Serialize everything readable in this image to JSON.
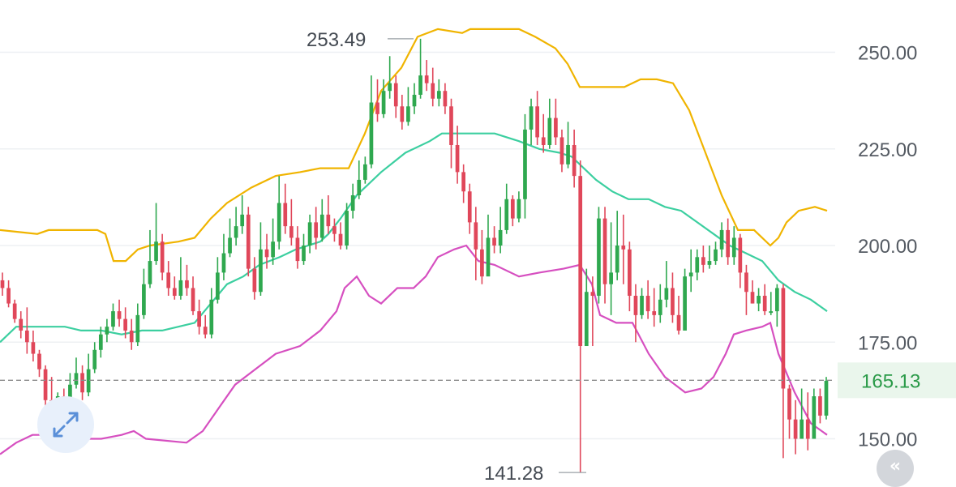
{
  "chart_data": {
    "type": "candlestick",
    "y_axis": {
      "ticks": [
        "250.00",
        "225.00",
        "200.00",
        "175.00",
        "150.00"
      ],
      "tick_values": [
        250,
        225,
        200,
        175,
        150
      ],
      "range": [
        138,
        262
      ],
      "grid": true,
      "position": "right"
    },
    "current_price": {
      "label": "165.13",
      "value": 165.13
    },
    "high_marker": {
      "label": "253.49",
      "value": 253.49
    },
    "low_marker": {
      "label": "141.28",
      "value": 141.28
    },
    "colors": {
      "up": "#2fa84f",
      "down": "#e0475a",
      "upper_band": "#f0b400",
      "middle_band": "#3ccfa0",
      "lower_band": "#d64fc0",
      "grid": "#eef0f3",
      "current_line": "#8c8c8c"
    },
    "candles": [
      [
        191,
        189,
        193,
        187
      ],
      [
        189,
        185,
        191,
        184
      ],
      [
        185,
        181,
        186,
        180
      ],
      [
        181,
        178,
        183,
        176
      ],
      [
        178,
        175,
        184,
        172
      ],
      [
        175,
        172,
        178,
        170
      ],
      [
        172,
        168,
        173,
        166
      ],
      [
        168,
        160,
        169,
        157
      ],
      [
        160,
        155,
        166,
        154
      ],
      [
        155,
        161,
        162,
        153
      ],
      [
        161,
        157,
        163,
        155
      ],
      [
        157,
        164,
        167,
        156
      ],
      [
        164,
        167,
        171,
        163
      ],
      [
        167,
        162,
        169,
        160
      ],
      [
        162,
        168,
        172,
        161
      ],
      [
        168,
        173,
        175,
        167
      ],
      [
        173,
        177,
        179,
        171
      ],
      [
        177,
        179,
        181,
        175
      ],
      [
        179,
        183,
        185,
        178
      ],
      [
        183,
        181,
        186,
        179
      ],
      [
        181,
        178,
        184,
        176
      ],
      [
        178,
        175,
        181,
        173
      ],
      [
        175,
        182,
        185,
        174
      ],
      [
        182,
        190,
        194,
        181
      ],
      [
        190,
        196,
        204,
        189
      ],
      [
        196,
        201,
        211,
        195
      ],
      [
        201,
        193,
        203,
        191
      ],
      [
        193,
        189,
        196,
        187
      ],
      [
        189,
        187,
        192,
        186
      ],
      [
        187,
        191,
        197,
        186
      ],
      [
        191,
        189,
        195,
        187
      ],
      [
        189,
        183,
        192,
        182
      ],
      [
        183,
        179,
        186,
        177
      ],
      [
        179,
        177,
        182,
        176
      ],
      [
        177,
        186,
        189,
        176
      ],
      [
        186,
        193,
        197,
        185
      ],
      [
        193,
        198,
        203,
        191
      ],
      [
        198,
        202,
        207,
        197
      ],
      [
        202,
        205,
        210,
        200
      ],
      [
        205,
        208,
        213,
        203
      ],
      [
        208,
        194,
        210,
        192
      ],
      [
        194,
        188,
        197,
        186
      ],
      [
        188,
        199,
        206,
        187
      ],
      [
        199,
        197,
        203,
        194
      ],
      [
        197,
        201,
        207,
        195
      ],
      [
        201,
        211,
        218,
        199
      ],
      [
        211,
        205,
        216,
        203
      ],
      [
        205,
        202,
        212,
        200
      ],
      [
        202,
        196,
        205,
        194
      ],
      [
        196,
        200,
        203,
        195
      ],
      [
        200,
        206,
        208,
        198
      ],
      [
        206,
        202,
        210,
        199
      ],
      [
        202,
        208,
        212,
        201
      ],
      [
        208,
        205,
        213,
        203
      ],
      [
        205,
        203,
        207,
        201
      ],
      [
        203,
        200,
        206,
        199
      ],
      [
        200,
        209,
        211,
        199
      ],
      [
        209,
        213,
        216,
        207
      ],
      [
        213,
        217,
        222,
        212
      ],
      [
        217,
        221,
        223,
        216
      ],
      [
        221,
        237,
        244,
        220
      ],
      [
        237,
        234,
        243,
        232
      ],
      [
        234,
        240,
        243,
        233
      ],
      [
        240,
        242,
        249,
        238
      ],
      [
        242,
        236,
        244,
        233
      ],
      [
        236,
        232,
        239,
        230
      ],
      [
        232,
        236,
        241,
        231
      ],
      [
        236,
        239,
        242,
        234
      ],
      [
        239,
        244,
        253.49,
        238
      ],
      [
        244,
        242,
        248,
        240
      ],
      [
        242,
        238,
        246,
        236
      ],
      [
        238,
        240,
        243,
        236
      ],
      [
        240,
        236,
        242,
        234
      ],
      [
        236,
        226,
        238,
        220
      ],
      [
        226,
        219,
        231,
        216
      ],
      [
        219,
        214,
        221,
        211
      ],
      [
        214,
        206,
        216,
        203
      ],
      [
        206,
        199,
        210,
        191
      ],
      [
        199,
        192,
        204,
        190
      ],
      [
        192,
        202,
        208,
        194
      ],
      [
        202,
        200,
        205,
        198
      ],
      [
        200,
        204,
        210,
        198
      ],
      [
        204,
        212,
        216,
        203
      ],
      [
        212,
        207,
        213,
        205
      ],
      [
        207,
        212,
        214,
        206
      ],
      [
        212,
        230,
        234,
        207
      ],
      [
        230,
        236,
        238,
        226
      ],
      [
        236,
        228,
        240,
        226
      ],
      [
        228,
        226,
        234,
        224
      ],
      [
        226,
        233,
        238,
        225
      ],
      [
        233,
        228,
        238,
        226
      ],
      [
        228,
        221,
        230,
        219
      ],
      [
        221,
        226,
        232,
        220
      ],
      [
        226,
        218,
        230,
        215
      ],
      [
        218,
        174,
        222,
        141.28
      ],
      [
        174,
        188,
        194,
        174
      ],
      [
        188,
        187,
        192,
        174
      ],
      [
        187,
        207,
        210,
        185
      ],
      [
        207,
        190,
        210,
        185
      ],
      [
        190,
        193,
        206,
        182
      ],
      [
        193,
        200,
        209,
        191
      ],
      [
        200,
        199,
        208,
        190
      ],
      [
        199,
        187,
        201,
        183
      ],
      [
        187,
        182,
        190,
        175
      ],
      [
        182,
        187,
        189,
        181
      ],
      [
        187,
        183,
        191,
        181
      ],
      [
        183,
        182,
        189,
        179
      ],
      [
        182,
        186,
        190,
        180
      ],
      [
        186,
        189,
        196,
        184
      ],
      [
        189,
        182,
        193,
        180
      ],
      [
        182,
        178,
        187,
        177
      ],
      [
        178,
        192,
        194,
        181
      ],
      [
        192,
        193,
        199,
        188
      ],
      [
        193,
        197,
        199,
        191
      ],
      [
        197,
        195,
        200,
        193
      ],
      [
        195,
        196,
        200,
        194
      ],
      [
        196,
        199,
        201,
        195
      ],
      [
        199,
        204,
        206,
        197
      ],
      [
        204,
        197,
        207,
        195
      ],
      [
        197,
        202,
        205,
        195
      ],
      [
        202,
        193,
        203,
        189
      ],
      [
        193,
        188,
        195,
        182
      ],
      [
        188,
        185,
        191,
        185
      ],
      [
        185,
        187,
        189,
        183
      ],
      [
        187,
        183,
        190,
        182
      ],
      [
        183,
        183,
        188,
        182
      ],
      [
        183,
        189,
        190,
        179
      ],
      [
        189,
        163,
        190,
        145
      ],
      [
        163,
        155,
        164,
        150
      ],
      [
        155,
        150,
        160,
        146
      ],
      [
        150,
        155,
        163,
        150
      ],
      [
        155,
        150,
        162,
        147
      ],
      [
        150,
        161,
        163,
        153
      ],
      [
        161,
        156,
        163,
        154
      ],
      [
        156,
        165,
        166,
        155
      ]
    ],
    "upper_band": [
      [
        0,
        204
      ],
      [
        46,
        203
      ],
      [
        60,
        204
      ],
      [
        120,
        204
      ],
      [
        130,
        203
      ],
      [
        140,
        196
      ],
      [
        155,
        196
      ],
      [
        170,
        199
      ],
      [
        185,
        200
      ],
      [
        220,
        201
      ],
      [
        240,
        202
      ],
      [
        260,
        207
      ],
      [
        280,
        211
      ],
      [
        310,
        215
      ],
      [
        340,
        218
      ],
      [
        370,
        219
      ],
      [
        395,
        220
      ],
      [
        430,
        220
      ],
      [
        450,
        229
      ],
      [
        470,
        240
      ],
      [
        495,
        246
      ],
      [
        515,
        254
      ],
      [
        540,
        256
      ],
      [
        570,
        255
      ],
      [
        580,
        256
      ],
      [
        600,
        256
      ],
      [
        640,
        256
      ],
      [
        660,
        254
      ],
      [
        685,
        251
      ],
      [
        700,
        247
      ],
      [
        715,
        241
      ],
      [
        735,
        241
      ],
      [
        770,
        241
      ],
      [
        790,
        243
      ],
      [
        810,
        243
      ],
      [
        830,
        242
      ],
      [
        850,
        235
      ],
      [
        870,
        224
      ],
      [
        890,
        213
      ],
      [
        910,
        204
      ],
      [
        930,
        204
      ],
      [
        950,
        200
      ],
      [
        960,
        202
      ],
      [
        970,
        206
      ],
      [
        985,
        209
      ],
      [
        1005,
        210
      ],
      [
        1020,
        209
      ]
    ],
    "middle_band": [
      [
        0,
        175
      ],
      [
        20,
        179
      ],
      [
        40,
        179
      ],
      [
        60,
        179
      ],
      [
        80,
        179
      ],
      [
        100,
        178
      ],
      [
        125,
        178
      ],
      [
        150,
        177
      ],
      [
        175,
        178
      ],
      [
        200,
        178
      ],
      [
        220,
        179
      ],
      [
        240,
        180
      ],
      [
        260,
        185
      ],
      [
        280,
        190
      ],
      [
        300,
        192
      ],
      [
        320,
        195
      ],
      [
        345,
        197
      ],
      [
        365,
        199
      ],
      [
        380,
        200
      ],
      [
        395,
        201
      ],
      [
        405,
        203
      ],
      [
        420,
        207
      ],
      [
        440,
        213
      ],
      [
        470,
        219
      ],
      [
        500,
        224
      ],
      [
        530,
        227
      ],
      [
        545,
        229
      ],
      [
        570,
        229
      ],
      [
        590,
        229
      ],
      [
        610,
        229
      ],
      [
        640,
        227
      ],
      [
        665,
        225
      ],
      [
        690,
        224
      ],
      [
        705,
        223
      ],
      [
        715,
        221
      ],
      [
        735,
        217
      ],
      [
        755,
        214
      ],
      [
        775,
        212
      ],
      [
        800,
        212
      ],
      [
        820,
        210
      ],
      [
        840,
        209
      ],
      [
        860,
        206
      ],
      [
        880,
        203
      ],
      [
        900,
        200
      ],
      [
        920,
        198
      ],
      [
        940,
        196
      ],
      [
        960,
        191
      ],
      [
        980,
        188
      ],
      [
        1000,
        186
      ],
      [
        1020,
        183
      ]
    ],
    "lower_band": [
      [
        0,
        146
      ],
      [
        20,
        149
      ],
      [
        40,
        151
      ],
      [
        60,
        151
      ],
      [
        80,
        152
      ],
      [
        100,
        150
      ],
      [
        125,
        150
      ],
      [
        150,
        151
      ],
      [
        165,
        152
      ],
      [
        180,
        150
      ],
      [
        230,
        149
      ],
      [
        250,
        152
      ],
      [
        270,
        158
      ],
      [
        290,
        164
      ],
      [
        315,
        168
      ],
      [
        340,
        172
      ],
      [
        370,
        174
      ],
      [
        395,
        178
      ],
      [
        415,
        183
      ],
      [
        425,
        189
      ],
      [
        440,
        192
      ],
      [
        455,
        187
      ],
      [
        470,
        185
      ],
      [
        490,
        189
      ],
      [
        510,
        189
      ],
      [
        525,
        192
      ],
      [
        540,
        197
      ],
      [
        560,
        199
      ],
      [
        575,
        200
      ],
      [
        590,
        196
      ],
      [
        610,
        195
      ],
      [
        640,
        192
      ],
      [
        665,
        193
      ],
      [
        695,
        194
      ],
      [
        715,
        195
      ],
      [
        730,
        190
      ],
      [
        740,
        182
      ],
      [
        760,
        180
      ],
      [
        780,
        180
      ],
      [
        800,
        172
      ],
      [
        820,
        166
      ],
      [
        845,
        162
      ],
      [
        865,
        163
      ],
      [
        880,
        166
      ],
      [
        895,
        172
      ],
      [
        905,
        177
      ],
      [
        920,
        178
      ],
      [
        940,
        179
      ],
      [
        950,
        180
      ],
      [
        960,
        172
      ],
      [
        980,
        162
      ],
      [
        1000,
        154
      ],
      [
        1020,
        151
      ]
    ]
  },
  "controls": {
    "expand_icon": "expand-arrows-icon",
    "nav_icon": "chevrons-icon",
    "nav_glyph": "«"
  }
}
